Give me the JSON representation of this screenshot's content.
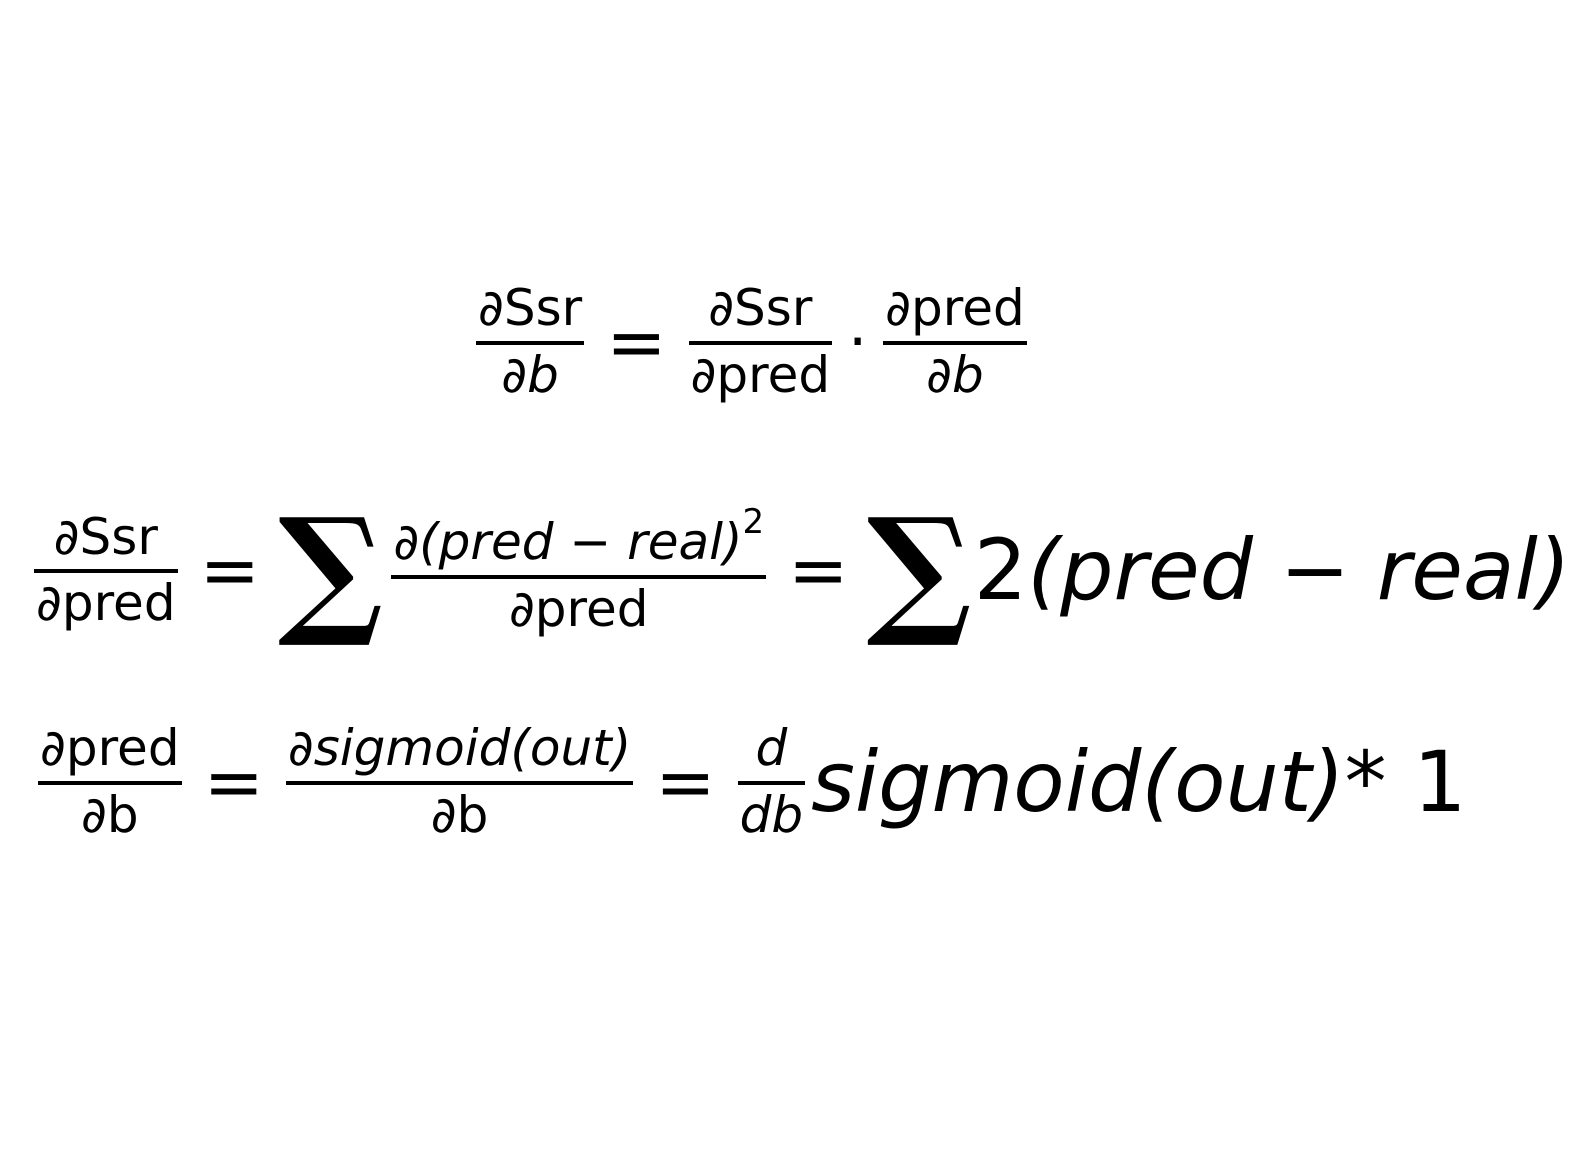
{
  "eq1": {
    "lhs_num": "∂Ssr",
    "lhs_den": "∂b",
    "equals": "=",
    "f2_num": "∂Ssr",
    "f2_den": "∂pred",
    "dot": "·",
    "f3_num": "∂pred",
    "f3_den": "∂b"
  },
  "eq2": {
    "lhs_num": "∂Ssr",
    "lhs_den": "∂pred",
    "equals1": "=",
    "sum1": "∑",
    "mid_num": "∂(pred − real)",
    "mid_exp": "2",
    "mid_den": "∂pred",
    "equals2": "=",
    "sum2": "∑",
    "rhs_two": "2",
    "rhs_expr": "(pred − real)"
  },
  "eq3": {
    "lhs_num": "∂pred",
    "lhs_den": "∂b",
    "equals1": "=",
    "mid_num": "∂sigmoid(out)",
    "mid_den": "∂b",
    "equals2": "=",
    "d_num": "d",
    "d_den": "db",
    "rhs_expr": "sigmoid(out)",
    "rhs_times": " * 1"
  }
}
